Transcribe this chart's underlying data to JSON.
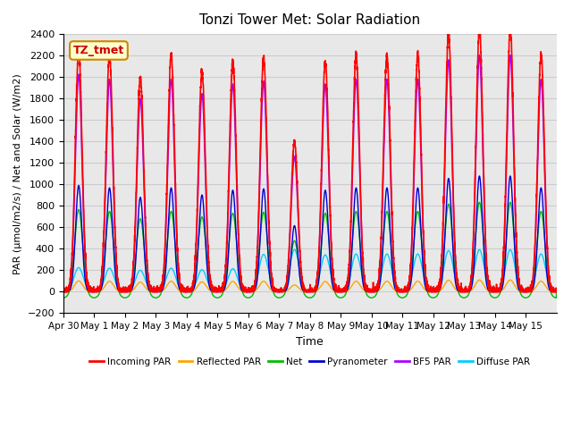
{
  "title": "Tonzi Tower Met: Solar Radiation",
  "ylabel": "PAR (μmol/m2/s) / Net and Solar (W/m2)",
  "xlabel": "Time",
  "annotation": "TZ_tmet",
  "ylim": [
    -200,
    2400
  ],
  "n_days": 16,
  "series": {
    "incoming_par": {
      "label": "Incoming PAR",
      "color": "#FF0000"
    },
    "reflected_par": {
      "label": "Reflected PAR",
      "color": "#FFA500"
    },
    "net": {
      "label": "Net",
      "color": "#00BB00"
    },
    "pyranometer": {
      "label": "Pyranometer",
      "color": "#0000CC"
    },
    "bf5_par": {
      "label": "BF5 PAR",
      "color": "#AA00FF"
    },
    "diffuse_par": {
      "label": "Diffuse PAR",
      "color": "#00CCFF"
    }
  },
  "tick_labels": [
    "Apr 30",
    "May 1",
    "May 2",
    "May 3",
    "May 4",
    "May 5",
    "May 6",
    "May 7",
    "May 8",
    "May 9",
    "May 10",
    "May 11",
    "May 12",
    "May 13",
    "May 14",
    "May 15"
  ],
  "incoming_peaks": [
    2250,
    2200,
    2000,
    2200,
    2050,
    2150,
    2180,
    1400,
    2150,
    2200,
    2200,
    2200,
    2400,
    2450,
    2450,
    2200
  ],
  "cloudy_days": [
    7
  ],
  "grid_color": "#CCCCCC",
  "bg_color": "#E8E8E8",
  "fig_bg": "#FFFFFF",
  "yticks": [
    -200,
    0,
    200,
    400,
    600,
    800,
    1000,
    1200,
    1400,
    1600,
    1800,
    2000,
    2200,
    2400
  ]
}
